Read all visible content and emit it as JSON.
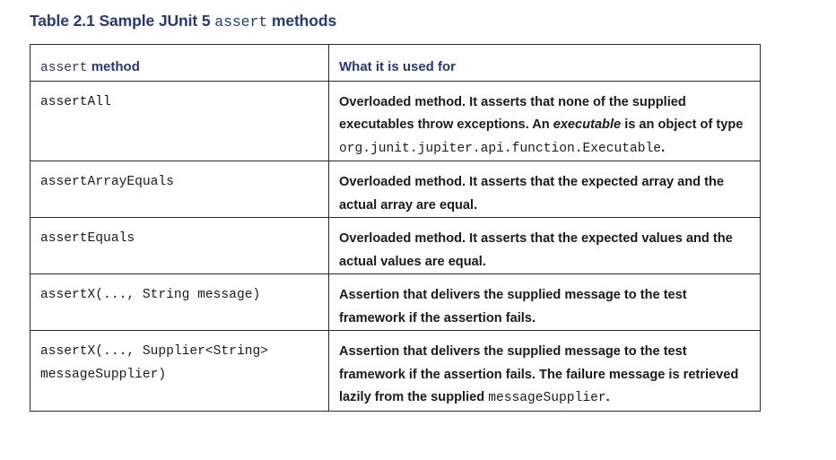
{
  "caption": {
    "prefix": "Table 2.1 Sample JUnit 5 ",
    "code": "assert",
    "suffix": " methods"
  },
  "header": {
    "col1_code": "assert",
    "col1_text": " method",
    "col2": "What it is used for"
  },
  "rows": [
    {
      "method": "assertAll",
      "desc_a": "Overloaded method. It asserts that none of the supplied executables throw exceptions. An ",
      "desc_italic": "executable",
      "desc_b": " is an object of type ",
      "desc_code": "org.junit.jupiter.api.function.Executable",
      "desc_c": "."
    },
    {
      "method": "assertArrayEquals",
      "desc": "Overloaded method. It asserts that the expected array and the actual array are equal."
    },
    {
      "method": "assertEquals",
      "desc": "Overloaded method. It asserts that the expected values and the actual values are equal."
    },
    {
      "method": "assertX(..., String message)",
      "desc": "Assertion that delivers the supplied message to the test framework if the assertion fails."
    },
    {
      "method_line1": "assertX(..., Supplier<String>",
      "method_line2": "messageSupplier)",
      "desc_a": "Assertion that delivers the supplied message to the test framework if the assertion fails. The failure message is retrieved lazily from the supplied ",
      "desc_code": "messageSupplier",
      "desc_b": "."
    }
  ]
}
